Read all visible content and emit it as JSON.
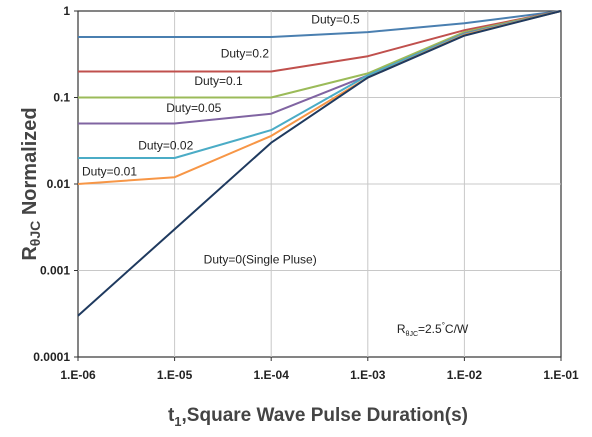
{
  "chart_data": {
    "type": "line",
    "xscale": "log",
    "yscale": "log",
    "xlim": [
      1e-06,
      0.1
    ],
    "ylim": [
      0.0001,
      1
    ],
    "grid": true,
    "xlabel_main": "t",
    "xlabel_sub": "1",
    "xlabel_rest": ",Square Wave Pulse Duration(s)",
    "ylabel_main": "R",
    "ylabel_sub": "θJC",
    "ylabel_rest": " Normalized",
    "x_ticks": [
      {
        "value": 1e-06,
        "label": "1.E-06"
      },
      {
        "value": 1e-05,
        "label": "1.E-05"
      },
      {
        "value": 0.0001,
        "label": "1.E-04"
      },
      {
        "value": 0.001,
        "label": "1.E-03"
      },
      {
        "value": 0.01,
        "label": "1.E-02"
      },
      {
        "value": 0.1,
        "label": "1.E-01"
      }
    ],
    "y_ticks": [
      {
        "value": 0.0001,
        "label": "0.0001"
      },
      {
        "value": 0.001,
        "label": "0.001"
      },
      {
        "value": 0.01,
        "label": "0.01"
      },
      {
        "value": 0.1,
        "label": "0.1"
      },
      {
        "value": 1,
        "label": "1"
      }
    ],
    "annotation": {
      "main": "R",
      "sub": "θJC",
      "rest": "=2.5",
      "sup": "°",
      "end": "C/W",
      "x": 0.002,
      "y": 0.00019
    },
    "series": [
      {
        "name": "Duty=0.5",
        "color": "#4a7fb0",
        "x": [
          1e-06,
          1e-05,
          0.0001,
          0.001,
          0.01,
          0.1
        ],
        "y": [
          0.5,
          0.5,
          0.5,
          0.57,
          0.72,
          1.0
        ],
        "label_x": 0.00026,
        "label_y": 0.72
      },
      {
        "name": "Duty=0.2",
        "color": "#c0504d",
        "x": [
          1e-06,
          1e-05,
          0.0001,
          0.001,
          0.01,
          0.1
        ],
        "y": [
          0.2,
          0.2,
          0.2,
          0.3,
          0.6,
          1.0
        ],
        "label_x": 3e-05,
        "label_y": 0.29
      },
      {
        "name": "Duty=0.1",
        "color": "#9bbb59",
        "x": [
          1e-06,
          1e-05,
          0.0001,
          0.001,
          0.01,
          0.1
        ],
        "y": [
          0.1,
          0.1,
          0.1,
          0.19,
          0.57,
          1.0
        ],
        "label_x": 1.6e-05,
        "label_y": 0.14
      },
      {
        "name": "Duty=0.05",
        "color": "#8064a2",
        "x": [
          1e-06,
          1e-05,
          0.0001,
          0.001,
          0.01,
          0.1
        ],
        "y": [
          0.05,
          0.05,
          0.065,
          0.18,
          0.55,
          1.0
        ],
        "label_x": 8.2e-06,
        "label_y": 0.068
      },
      {
        "name": "Duty=0.02",
        "color": "#4bacc6",
        "x": [
          1e-06,
          1e-05,
          0.0001,
          0.001,
          0.01,
          0.1
        ],
        "y": [
          0.02,
          0.02,
          0.042,
          0.18,
          0.54,
          1.0
        ],
        "label_x": 4.2e-06,
        "label_y": 0.025
      },
      {
        "name": "Duty=0.01",
        "color": "#f79646",
        "x": [
          1e-06,
          1e-05,
          0.0001,
          0.001,
          0.01,
          0.1
        ],
        "y": [
          0.01,
          0.012,
          0.036,
          0.17,
          0.53,
          1.0
        ],
        "label_x": 1.1e-06,
        "label_y": 0.0125
      },
      {
        "name": "Duty=0(Single Pluse)",
        "color": "#1f3a5f",
        "x": [
          1e-06,
          1e-05,
          0.0001,
          0.001,
          0.01,
          0.1
        ],
        "y": [
          0.0003,
          0.003,
          0.03,
          0.17,
          0.52,
          1.0
        ],
        "label_x": 2e-05,
        "label_y": 0.0012
      }
    ]
  }
}
